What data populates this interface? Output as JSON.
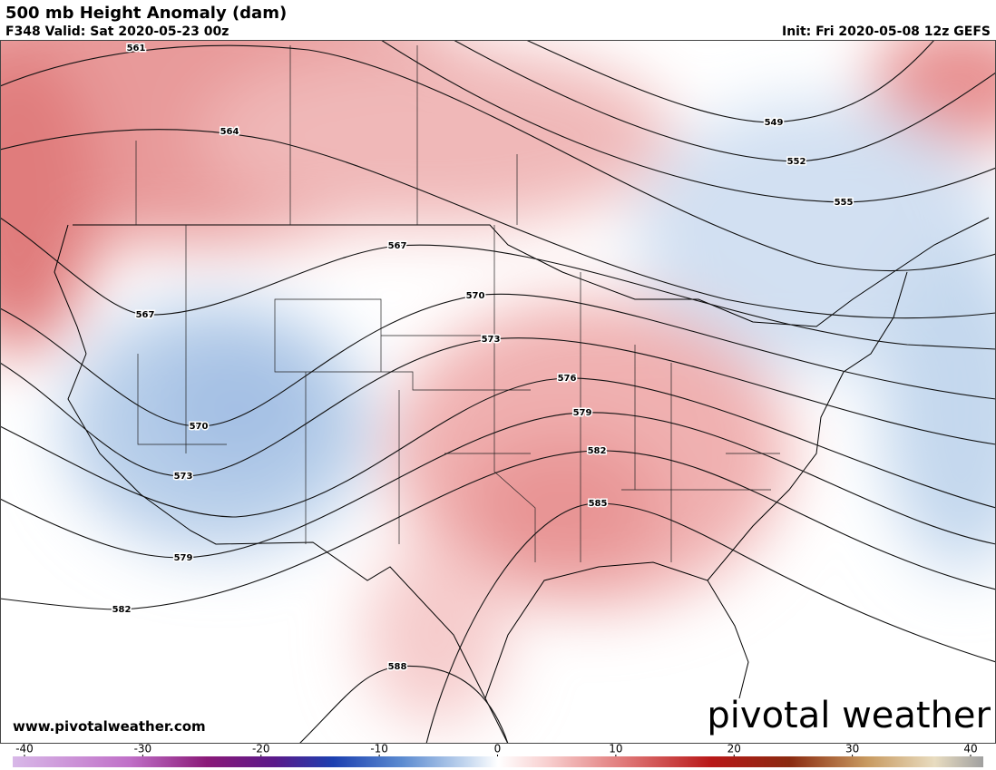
{
  "header": {
    "title": "500 mb Height Anomaly (dam)",
    "valid": "F348 Valid: Sat 2020-05-23 00z",
    "init": "Init: Fri 2020-05-08 12z GEFS"
  },
  "contour_labels": [
    561,
    564,
    567,
    567,
    570,
    570,
    573,
    573,
    576,
    579,
    579,
    582,
    582,
    585,
    588,
    549,
    552,
    555
  ],
  "footer": {
    "website": "www.pivotalweather.com",
    "logo": "pivotal weather"
  },
  "colorbar": {
    "ticks": [
      -40,
      -30,
      -20,
      -10,
      0,
      10,
      20,
      30,
      40
    ]
  }
}
